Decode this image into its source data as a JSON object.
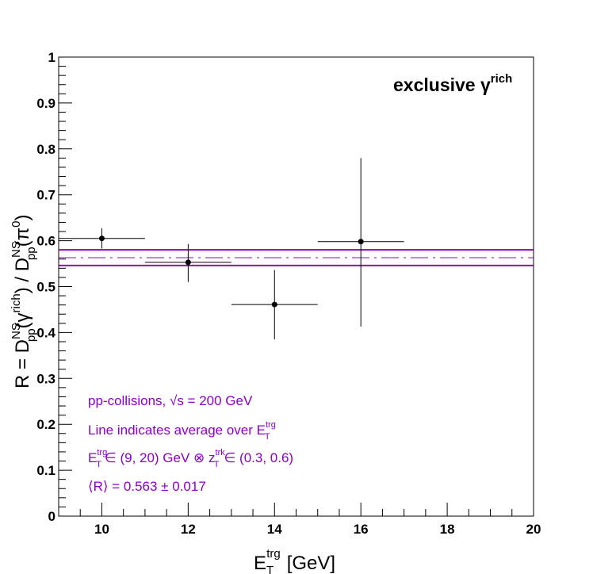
{
  "chart_data": {
    "type": "scatter",
    "title": "exclusive γ",
    "title_sup": "rich",
    "xlabel": {
      "main": "E",
      "sub": "T",
      "sup": "trg",
      "unit": "[GeV]"
    },
    "ylabel": "R = D^{NS}_{pp}(γ^{rich}) / D^{NS}_{pp}(π^{0})",
    "xlim": [
      9,
      20
    ],
    "ylim": [
      0,
      1
    ],
    "x_ticks": [
      "10",
      "12",
      "14",
      "16",
      "18",
      "20"
    ],
    "y_ticks": [
      "0",
      "0.1",
      "0.2",
      "0.3",
      "0.4",
      "0.5",
      "0.6",
      "0.7",
      "0.8",
      "0.9",
      "1"
    ],
    "grid": false,
    "series": [
      {
        "points": [
          {
            "x": 10,
            "y": 0.605,
            "xerr": [
              9,
              11
            ],
            "yerr": [
              0.583,
              0.627
            ]
          },
          {
            "x": 12,
            "y": 0.553,
            "xerr": [
              11,
              13
            ],
            "yerr": [
              0.51,
              0.593
            ]
          },
          {
            "x": 14,
            "y": 0.461,
            "xerr": [
              13,
              15
            ],
            "yerr": [
              0.385,
              0.536
            ]
          },
          {
            "x": 16,
            "y": 0.598,
            "xerr": [
              15,
              17
            ],
            "yerr": [
              0.413,
              0.78
            ]
          }
        ]
      }
    ],
    "average": {
      "value": 0.563,
      "error": 0.017
    },
    "annotations": [
      "pp-collisions, √s = 200 GeV",
      "Line indicates average over E",
      "E",
      "∈ (9, 20) GeV ⊗ z",
      "∈ (0.3, 0.6)",
      "⟨R⟩ = 0.563 ± 0.017"
    ],
    "annotation_subs": {
      "T": "T",
      "trg": "trg",
      "trk": "trk"
    }
  },
  "colors": {
    "average": "#8a00c8",
    "annotation": "#8a00c8",
    "points": "#000000"
  }
}
